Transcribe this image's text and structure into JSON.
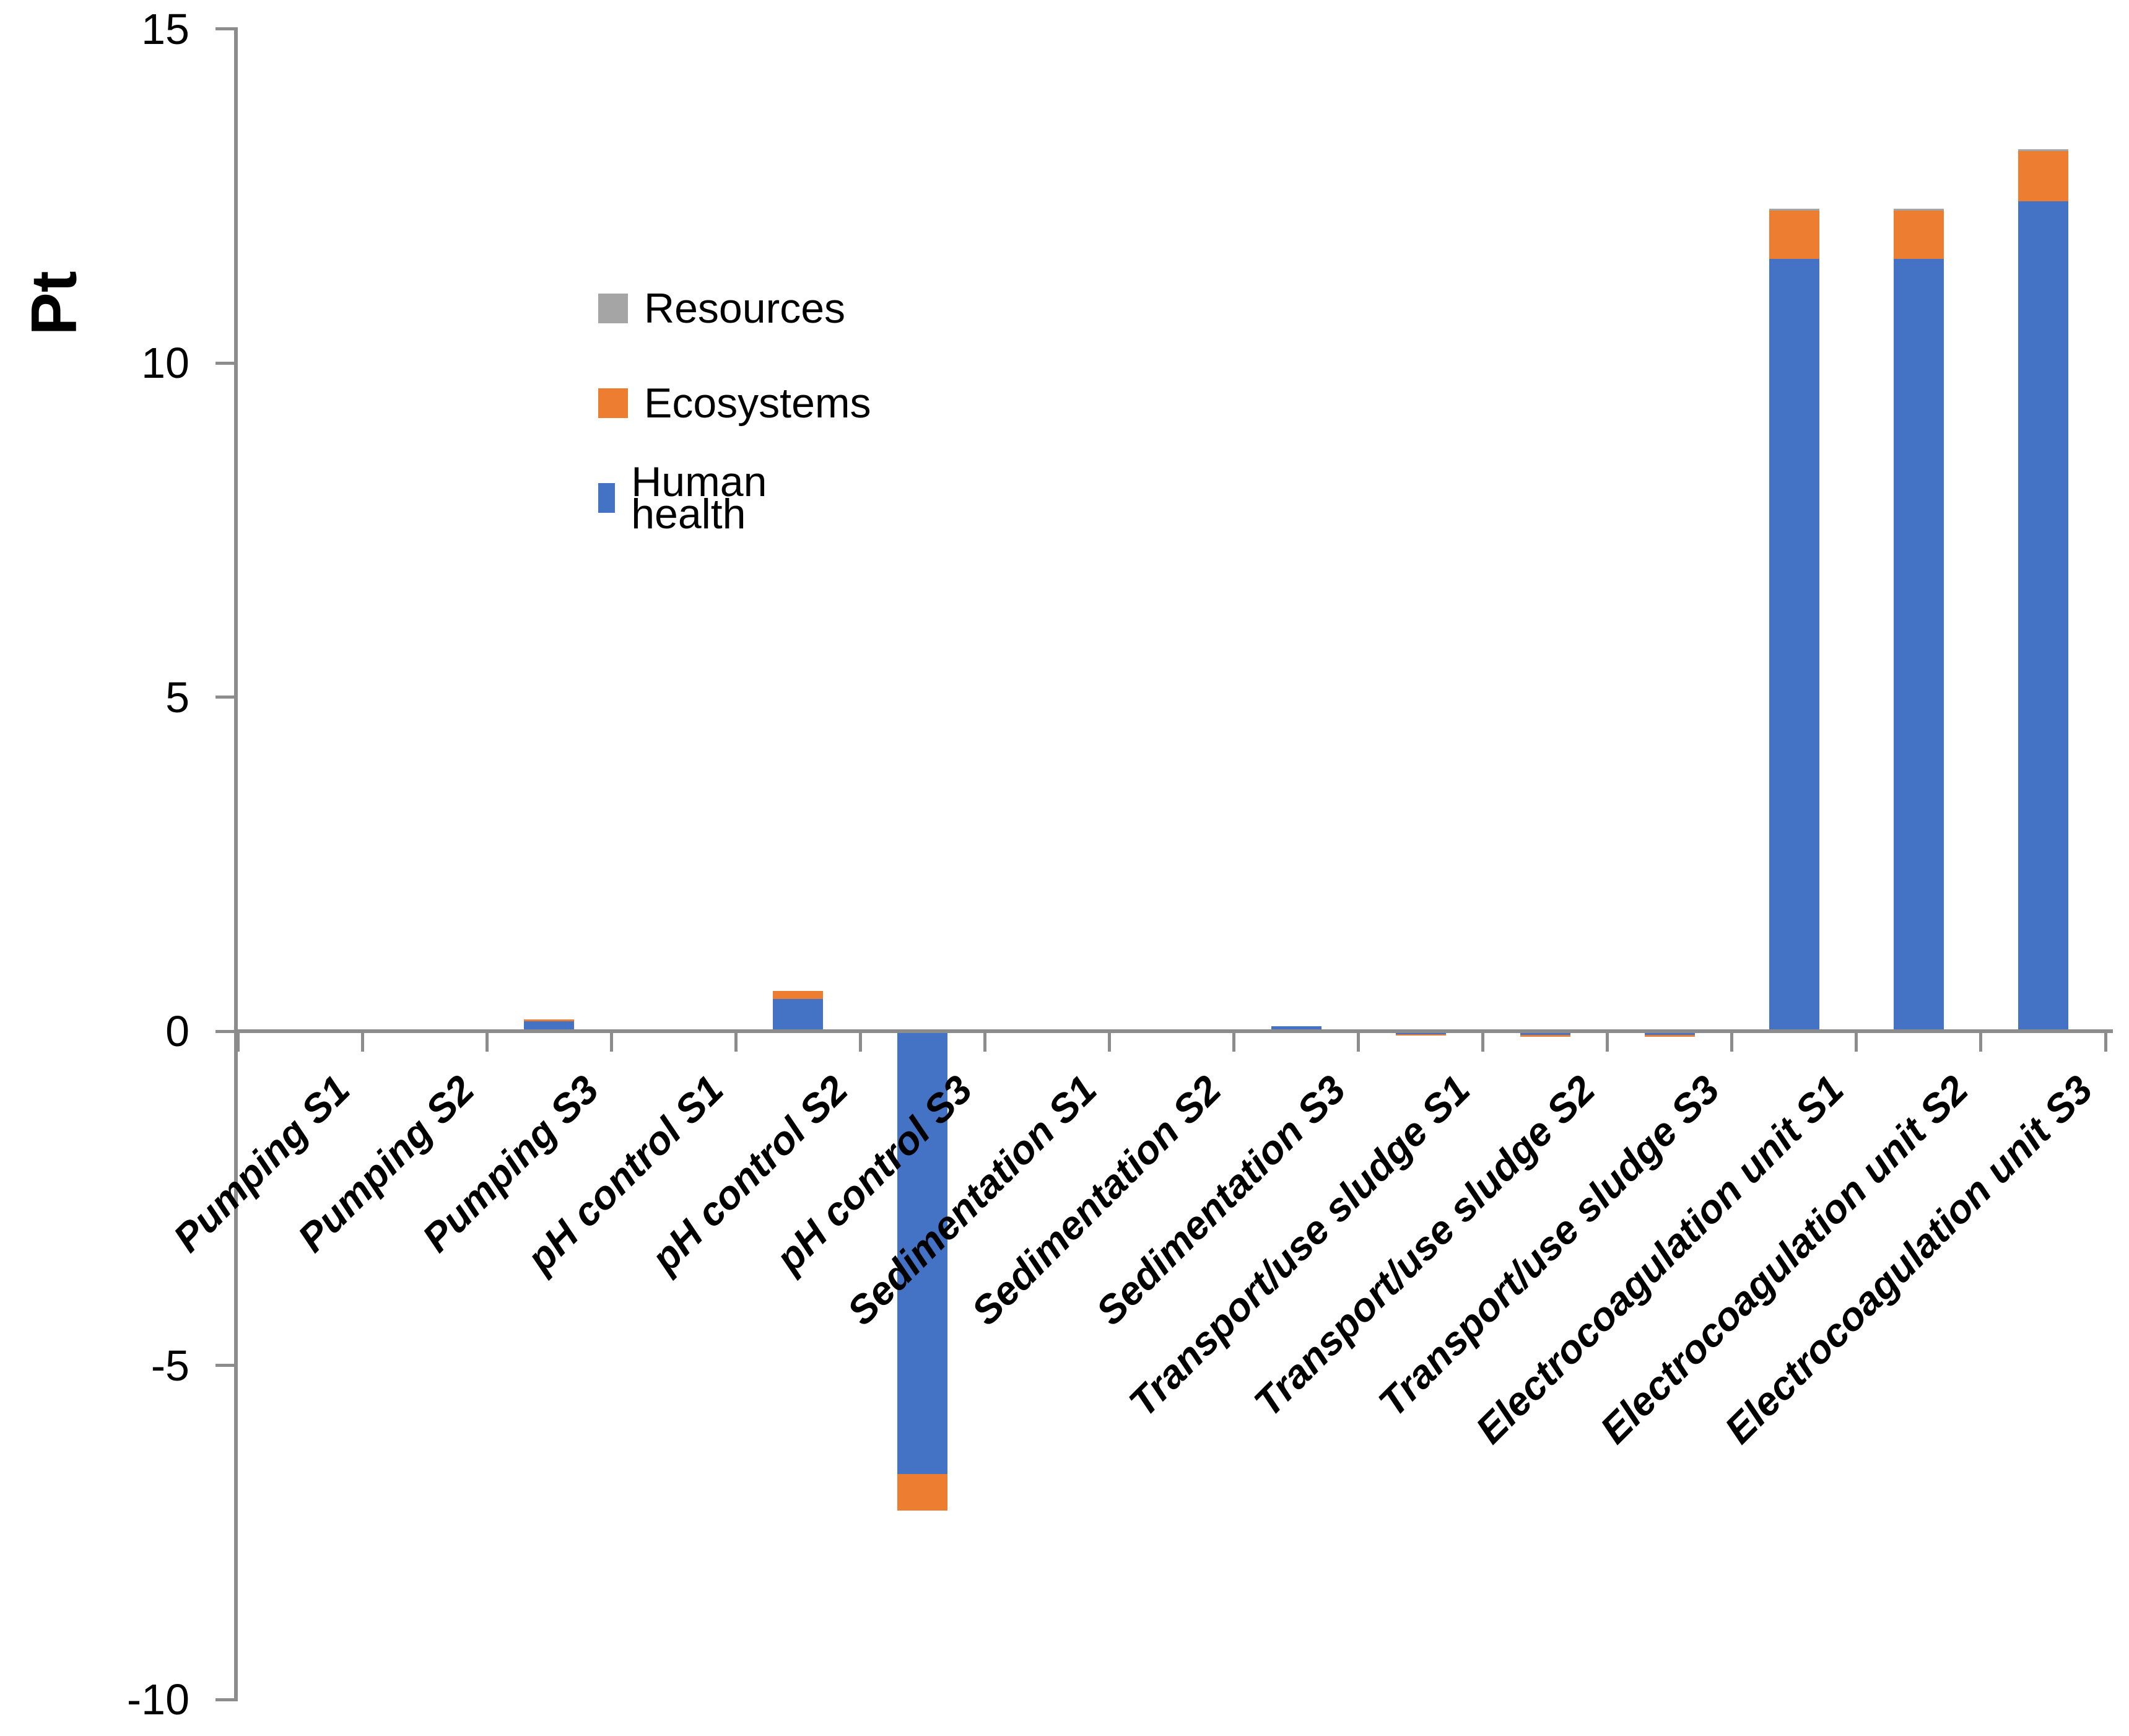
{
  "chart_data": {
    "type": "bar",
    "subtype": "stacked-column",
    "title": "",
    "ylabel": "Pt",
    "xlabel": "",
    "ylim": [
      -10,
      15
    ],
    "yticks": [
      15,
      10,
      5,
      0,
      -5,
      -10
    ],
    "grid": false,
    "legend_position": "inside-top-left",
    "axis_color": "#8c8c8c",
    "categories": [
      "Pumping S1",
      "Pumping S2",
      "Pumping S3",
      "pH control S1",
      "pH control S2",
      "pH control S3",
      "Sedimentation S1",
      "Sedimentation S2",
      "Sedimentation S3",
      "Transport/use sludge S1",
      "Transport/use sludge S2",
      "Transport/use sludge S3",
      "Electrocoagulation unit S1",
      "Electrocoagulation unit S2",
      "Electrocoagulation unit S3"
    ],
    "legend": [
      {
        "label": "Resources",
        "color": "#A5A5A5"
      },
      {
        "label": "Ecosystems",
        "color": "#ED7D31"
      },
      {
        "label": "Human health",
        "color": "#4472C4"
      }
    ],
    "series": [
      {
        "name": "Human health",
        "color": "#4472C4",
        "values": [
          0,
          0,
          0.15,
          0.01,
          0.48,
          -6.63,
          0,
          0,
          0.07,
          -0.05,
          -0.06,
          -0.06,
          11.56,
          11.56,
          12.42
        ]
      },
      {
        "name": "Ecosystems",
        "color": "#ED7D31",
        "values": [
          0.03,
          0.03,
          0.03,
          0.02,
          0.12,
          -0.54,
          0,
          0,
          0,
          -0.015,
          -0.02,
          -0.02,
          0.72,
          0.72,
          0.75
        ]
      },
      {
        "name": "Resources",
        "color": "#A5A5A5",
        "values": [
          0,
          0,
          0,
          0,
          0,
          0,
          0,
          0,
          0,
          0,
          0,
          0,
          0.03,
          0.03,
          0.03
        ]
      }
    ]
  }
}
